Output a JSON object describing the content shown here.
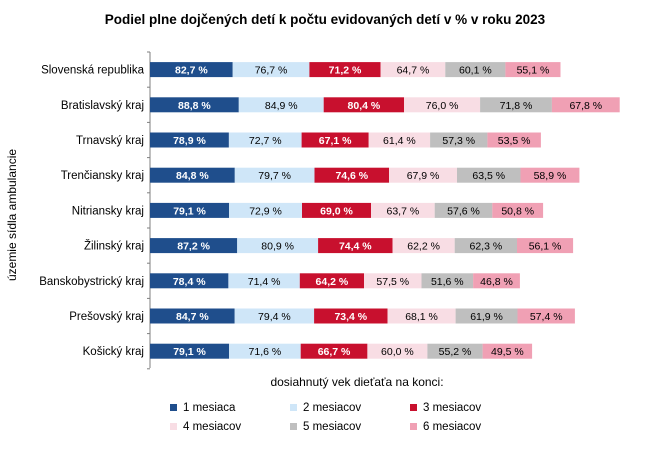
{
  "chart_data": {
    "type": "bar",
    "orientation": "horizontal",
    "stacked": true,
    "title": "Podiel plne dojčených detí k počtu evidovaných detí v % v roku 2023",
    "ylabel": "územie sídla ambulancie",
    "legend_title": "dosiahnutý vek dieťaťa na konci:",
    "legend_position": "bottom",
    "categories": [
      "Slovenská  republika",
      "Bratislavský  kraj",
      "Trnavský  kraj",
      "Trenčiansky kraj",
      "Nitriansky  kraj",
      "Žilinský  kraj",
      "Banskobystrický  kraj",
      "Prešovský  kraj",
      "Košický  kraj"
    ],
    "series": [
      {
        "name": "1 mesiaca",
        "color": "#1f4e8c",
        "values": [
          82.7,
          88.8,
          78.9,
          84.8,
          79.1,
          87.2,
          78.4,
          84.7,
          79.1
        ],
        "labels": [
          "82,7 %",
          "88,8 %",
          "78,9 %",
          "84,8 %",
          "79,1 %",
          "87,2 %",
          "78,4 %",
          "84,7 %",
          "79,1 %"
        ]
      },
      {
        "name": "2 mesiacov",
        "color": "#cfe6f8",
        "values": [
          76.7,
          84.9,
          72.7,
          79.7,
          72.9,
          80.9,
          71.4,
          79.4,
          71.6
        ],
        "labels": [
          "76,7 %",
          "84,9 %",
          "72,7 %",
          "79,7 %",
          "72,9 %",
          "80,9 %",
          "71,4 %",
          "79,4 %",
          "71,6 %"
        ]
      },
      {
        "name": "3 mesiacov",
        "color": "#c8102e",
        "values": [
          71.2,
          80.4,
          67.1,
          74.6,
          69.0,
          74.4,
          64.2,
          73.4,
          66.7
        ],
        "labels": [
          "71,2 %",
          "80,4 %",
          "67,1 %",
          "74,6 %",
          "69,0 %",
          "74,4 %",
          "64,2 %",
          "73,4 %",
          "66,7 %"
        ]
      },
      {
        "name": "4 mesiacov",
        "color": "#f8dde4",
        "values": [
          64.7,
          76.0,
          61.4,
          67.9,
          63.7,
          62.2,
          57.5,
          68.1,
          60.0
        ],
        "labels": [
          "64,7 %",
          "76,0 %",
          "61,4 %",
          "67,9 %",
          "63,7 %",
          "62,2 %",
          "57,5 %",
          "68,1 %",
          "60,0 %"
        ]
      },
      {
        "name": "5 mesiacov",
        "color": "#bfbfbf",
        "values": [
          60.1,
          71.8,
          57.3,
          63.5,
          57.6,
          62.3,
          51.6,
          61.9,
          55.2
        ],
        "labels": [
          "60,1 %",
          "71,8 %",
          "57,3 %",
          "63,5 %",
          "57,6 %",
          "62,3 %",
          "51,6 %",
          "61,9 %",
          "55,2 %"
        ]
      },
      {
        "name": "6 mesiacov",
        "color": "#f0a0b4",
        "values": [
          55.1,
          67.8,
          53.5,
          58.9,
          50.8,
          56.1,
          46.8,
          57.4,
          49.5
        ],
        "labels": [
          "55,1 %",
          "67,8 %",
          "53,5 %",
          "58,9 %",
          "50,8 %",
          "56,1 %",
          "46,8 %",
          "57,4 %",
          "49,5 %"
        ]
      }
    ],
    "grid": false
  }
}
